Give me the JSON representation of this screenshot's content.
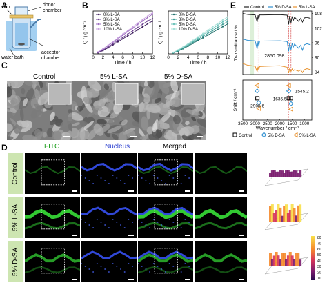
{
  "panel_labels": {
    "a": "A",
    "b": "B",
    "c": "C",
    "d": "D",
    "e": "E"
  },
  "panel_a": {
    "labels": {
      "skin": "skin",
      "donor": "donor\nchamber",
      "water_bath": "water bath",
      "acceptor": "acceptor\nchamber"
    },
    "colors": {
      "skin": "#e8c46a",
      "water": "#5aa9e6",
      "glass": "#cfe3f5"
    }
  },
  "panel_c": {
    "titles": [
      "Control",
      "5% L-SA",
      "5% D-SA"
    ]
  },
  "panel_d": {
    "headers": [
      {
        "text": "FITC",
        "color": "#1a9e1a"
      },
      {
        "text": "Nucleus",
        "color": "#2a3fd0"
      },
      {
        "text": "Merged",
        "color": "#000000"
      }
    ],
    "rows": [
      "Control",
      "5% L-SA",
      "5% D-SA"
    ],
    "colorbar_ticks": [
      "80",
      "70",
      "60",
      "50",
      "40",
      "30",
      "20",
      "10"
    ]
  },
  "chart_data": [
    {
      "type": "line",
      "panel": "B-left",
      "xlabel": "Time / h",
      "ylabel": "Q / μg cm⁻²",
      "xlim": [
        0,
        12
      ],
      "ylim": [
        0,
        20
      ],
      "x_ticks": [
        0,
        2,
        4,
        6,
        8,
        10,
        12
      ],
      "x": [
        1,
        2,
        3,
        4,
        5,
        6,
        7,
        8,
        9,
        10,
        11,
        12
      ],
      "series": [
        {
          "name": "0%  L-SA",
          "color": "#3d1f5c",
          "values": [
            0.5,
            1.5,
            2.8,
            4.2,
            5.6,
            7.0,
            8.4,
            9.8,
            11.2,
            12.6,
            14.0,
            15.3
          ]
        },
        {
          "name": "3%  L-SA",
          "color": "#6a3d8f",
          "values": [
            0.6,
            1.8,
            3.2,
            4.7,
            6.2,
            7.7,
            9.2,
            10.8,
            12.3,
            13.8,
            15.3,
            16.5
          ]
        },
        {
          "name": "5%  L-SA",
          "color": "#9b6bbf",
          "values": [
            0.8,
            2.2,
            3.8,
            5.4,
            7.0,
            8.7,
            10.4,
            12.0,
            13.7,
            15.3,
            16.9,
            18.5
          ]
        },
        {
          "name": "10% L-SA",
          "color": "#c9a3e0",
          "values": [
            0.9,
            2.4,
            4.0,
            5.7,
            7.4,
            9.2,
            10.9,
            12.6,
            14.3,
            16.0,
            17.6,
            19.2
          ]
        }
      ]
    },
    {
      "type": "line",
      "panel": "B-right",
      "xlabel": "Time / h",
      "ylabel": "Q / μg cm⁻²",
      "xlim": [
        0,
        12
      ],
      "ylim": [
        0,
        20
      ],
      "x_ticks": [
        0,
        2,
        4,
        6,
        8,
        10,
        12
      ],
      "x": [
        1,
        2,
        3,
        4,
        5,
        6,
        7,
        8,
        9,
        10,
        11,
        12
      ],
      "series": [
        {
          "name": "0%  D-SA",
          "color": "#1f6f6a",
          "values": [
            0.4,
            1.3,
            2.4,
            3.6,
            4.9,
            6.2,
            7.5,
            8.8,
            10.1,
            11.4,
            12.7,
            14.0
          ]
        },
        {
          "name": "3%  D-SA",
          "color": "#3a9c94",
          "values": [
            0.5,
            1.5,
            2.7,
            4.0,
            5.4,
            6.8,
            8.2,
            9.6,
            11.0,
            12.4,
            13.8,
            15.1
          ]
        },
        {
          "name": "5%  D-SA",
          "color": "#6cc3ba",
          "values": [
            0.6,
            1.7,
            3.0,
            4.4,
            5.9,
            7.4,
            8.9,
            10.4,
            11.9,
            13.4,
            14.9,
            16.2
          ]
        },
        {
          "name": "10% D-SA",
          "color": "#a6e0d8",
          "values": [
            0.7,
            1.9,
            3.3,
            4.8,
            6.3,
            7.9,
            9.5,
            11.1,
            12.7,
            14.2,
            15.8,
            17.2
          ]
        }
      ]
    },
    {
      "type": "line",
      "panel": "E-top",
      "ylabel": "Transmittance / %",
      "xlim": [
        3500,
        700
      ],
      "ylim": [
        83,
        109
      ],
      "x_ticks": [
        3500,
        3000,
        2500,
        2000,
        1500,
        1000
      ],
      "y_ticks": [
        84,
        90,
        96,
        102,
        108
      ],
      "annotation": "2850.098",
      "series": [
        {
          "name": "Control",
          "color": "#222222",
          "points": [
            [
              3500,
              108
            ],
            [
              3300,
              107.6
            ],
            [
              3000,
              107.4
            ],
            [
              2920,
              104.5
            ],
            [
              2880,
              107.3
            ],
            [
              2850,
              105.5
            ],
            [
              2820,
              107.4
            ],
            [
              2000,
              107.5
            ],
            [
              1700,
              107.3
            ],
            [
              1640,
              103.5
            ],
            [
              1600,
              107.0
            ],
            [
              1545,
              104.2
            ],
            [
              1500,
              106.8
            ],
            [
              1450,
              105.2
            ],
            [
              1400,
              106.5
            ],
            [
              1240,
              104.8
            ],
            [
              1150,
              106.0
            ],
            [
              1080,
              104.5
            ],
            [
              1000,
              106.2
            ],
            [
              900,
              106.4
            ],
            [
              750,
              106.0
            ]
          ]
        },
        {
          "name": "5% D-SA",
          "color": "#2e8fd0",
          "points": [
            [
              3500,
              97.5
            ],
            [
              3300,
              97.0
            ],
            [
              3000,
              96.8
            ],
            [
              2920,
              93.5
            ],
            [
              2880,
              96.6
            ],
            [
              2850,
              94.5
            ],
            [
              2820,
              96.7
            ],
            [
              2000,
              96.8
            ],
            [
              1700,
              96.5
            ],
            [
              1640,
              92.5
            ],
            [
              1600,
              96.0
            ],
            [
              1545,
              93.2
            ],
            [
              1500,
              95.8
            ],
            [
              1450,
              94.3
            ],
            [
              1400,
              95.5
            ],
            [
              1240,
              93.8
            ],
            [
              1150,
              95.0
            ],
            [
              1080,
              93.0
            ],
            [
              1000,
              95.2
            ],
            [
              900,
              95.6
            ],
            [
              750,
              95.2
            ]
          ]
        },
        {
          "name": "5% L-SA",
          "color": "#e8912c",
          "points": [
            [
              3500,
              87.5
            ],
            [
              3300,
              86.8
            ],
            [
              3000,
              86.4
            ],
            [
              2920,
              84.2
            ],
            [
              2880,
              86.2
            ],
            [
              2850,
              84.8
            ],
            [
              2820,
              86.3
            ],
            [
              2000,
              86.6
            ],
            [
              1700,
              86.0
            ],
            [
              1640,
              83.6
            ],
            [
              1600,
              85.5
            ],
            [
              1545,
              84.3
            ],
            [
              1500,
              85.3
            ],
            [
              1450,
              84.6
            ],
            [
              1400,
              85.0
            ],
            [
              1240,
              84.4
            ],
            [
              1150,
              84.9
            ],
            [
              1080,
              83.8
            ],
            [
              1000,
              85.0
            ],
            [
              900,
              85.4
            ],
            [
              750,
              85.0
            ]
          ]
        }
      ]
    },
    {
      "type": "scatter",
      "panel": "E-bottom",
      "xlabel": "Wavenumber / cm⁻¹",
      "ylabel": "Shift / cm⁻¹",
      "xlim": [
        3500,
        700
      ],
      "ylim": [
        -6,
        5
      ],
      "x_ticks": [
        3500,
        3000,
        2500,
        2000,
        1500,
        1000
      ],
      "annotations": [
        "2908.6",
        "1545.2",
        "1635.5"
      ],
      "series": [
        {
          "name": "Control",
          "marker": "square",
          "color": "#000000",
          "points": [
            [
              2908.6,
              0
            ],
            [
              1635.5,
              0
            ],
            [
              1545.2,
              0
            ]
          ]
        },
        {
          "name": "5% D-SA",
          "marker": "diamond",
          "color": "#2e8fd0",
          "points": [
            [
              2920,
              2
            ],
            [
              2850,
              -1.2
            ],
            [
              1635.5,
              2
            ],
            [
              1545.2,
              -1.5
            ]
          ]
        },
        {
          "name": "5% L-SA",
          "marker": "triangle-left",
          "color": "#e8912c",
          "points": [
            [
              2920,
              3.5
            ],
            [
              2850,
              -2.8
            ],
            [
              1635.5,
              3.5
            ],
            [
              1545.2,
              -3
            ]
          ]
        }
      ]
    }
  ]
}
